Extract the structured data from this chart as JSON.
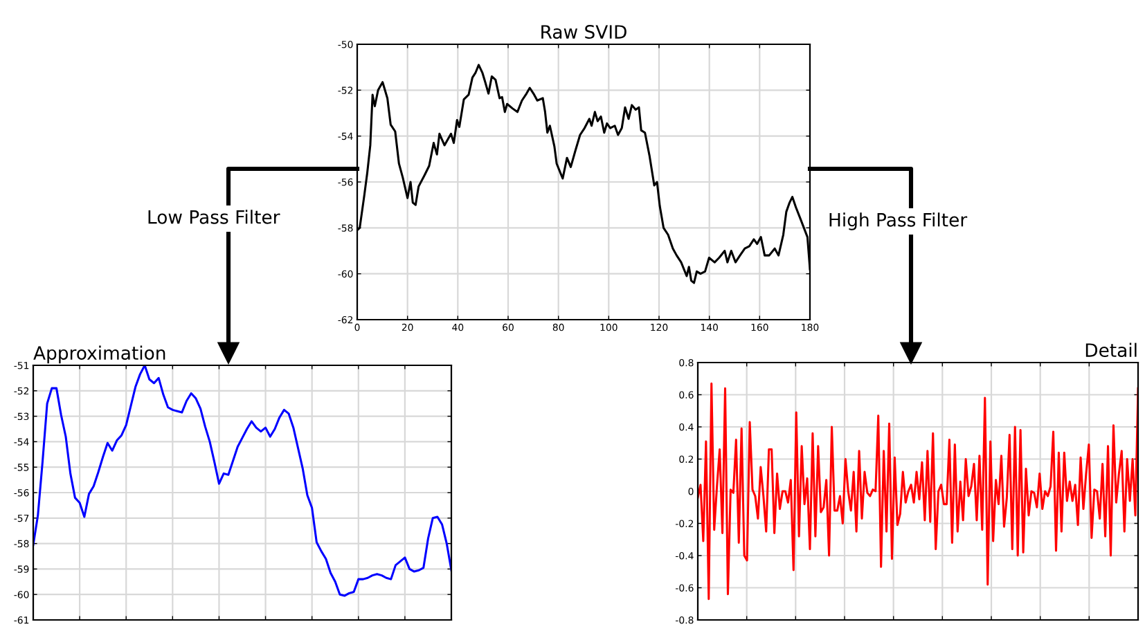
{
  "chart_data": [
    {
      "type": "line",
      "title": "Raw SVID",
      "annotations": [
        "Low Pass Filter",
        "High Pass Filter"
      ],
      "grid": true,
      "xlim": [
        0,
        180
      ],
      "xticks": [
        0,
        20,
        40,
        60,
        80,
        100,
        120,
        140,
        160,
        180
      ],
      "ylim": [
        -62,
        -50
      ],
      "yticks": [
        -62,
        -60,
        -58,
        -56,
        -54,
        -52,
        -50
      ],
      "series": [
        {
          "color": "#000000",
          "x": [
            0,
            1,
            2.8,
            4,
            5.2,
            6.1,
            7,
            8.3,
            10.1,
            12,
            13.3,
            15.1,
            16.6,
            18.1,
            20,
            21.2,
            22.1,
            23.2,
            24.4,
            26.8,
            28.6,
            30.4,
            31.7,
            32.7,
            34.7,
            37.3,
            38.4,
            39.7,
            40.6,
            42.4,
            44.3,
            45.8,
            47,
            48.3,
            49.8,
            50.9,
            52.2,
            53.5,
            55,
            56.6,
            57.6,
            58.7,
            59.6,
            61.8,
            63.7,
            64.6,
            65.5,
            67.3,
            68.6,
            70.1,
            71.6,
            73.8,
            74.7,
            75.6,
            76.6,
            78.4,
            79.3,
            81.7,
            83.4,
            84.9,
            86.7,
            88.6,
            90.4,
            92.3,
            93.2,
            94.5,
            95.6,
            96.9,
            98.2,
            99.3,
            100.6,
            102.4,
            103.7,
            105.2,
            106.5,
            107.9,
            109.2,
            110.7,
            112,
            112.9,
            114.4,
            116.2,
            118.1,
            119.2,
            120.3,
            121.8,
            123.6,
            125.5,
            127,
            128.8,
            131,
            131.9,
            132.8,
            133.9,
            135,
            136.5,
            138.3,
            139.9,
            142.1,
            143.9,
            146.1,
            147.2,
            148.7,
            150.4,
            152.2,
            154.1,
            155.9,
            157.7,
            159,
            160.5,
            162,
            163.8,
            166,
            167.5,
            169.4,
            170.6,
            171.9,
            173,
            174.4,
            176.2,
            179,
            180
          ],
          "values": [
            -58.1,
            -58.0,
            -56.6,
            -55.6,
            -54.4,
            -52.2,
            -52.7,
            -52.0,
            -51.65,
            -52.35,
            -53.5,
            -53.8,
            -55.2,
            -55.8,
            -56.7,
            -56.0,
            -56.9,
            -57.0,
            -56.2,
            -55.7,
            -55.3,
            -54.3,
            -54.8,
            -53.9,
            -54.4,
            -53.9,
            -54.3,
            -53.3,
            -53.6,
            -52.4,
            -52.2,
            -51.45,
            -51.25,
            -50.9,
            -51.25,
            -51.65,
            -52.15,
            -51.4,
            -51.55,
            -52.35,
            -52.3,
            -52.95,
            -52.6,
            -52.8,
            -52.95,
            -52.7,
            -52.45,
            -52.15,
            -51.9,
            -52.15,
            -52.45,
            -52.35,
            -52.95,
            -53.85,
            -53.55,
            -54.45,
            -55.2,
            -55.85,
            -54.95,
            -55.35,
            -54.65,
            -53.95,
            -53.65,
            -53.25,
            -53.55,
            -52.95,
            -53.35,
            -53.15,
            -53.85,
            -53.45,
            -53.65,
            -53.55,
            -53.95,
            -53.65,
            -52.75,
            -53.25,
            -52.65,
            -52.85,
            -52.75,
            -53.75,
            -53.85,
            -54.85,
            -56.15,
            -56.0,
            -57.05,
            -58.0,
            -58.3,
            -58.9,
            -59.2,
            -59.5,
            -60.1,
            -59.7,
            -60.3,
            -60.4,
            -59.9,
            -60.0,
            -59.9,
            -59.3,
            -59.5,
            -59.3,
            -59.0,
            -59.5,
            -59.0,
            -59.5,
            -59.2,
            -58.9,
            -58.8,
            -58.5,
            -58.7,
            -58.4,
            -59.2,
            -59.2,
            -58.9,
            -59.2,
            -58.3,
            -57.3,
            -56.9,
            -56.65,
            -57.1,
            -57.6,
            -58.4,
            -59.8
          ]
        }
      ]
    },
    {
      "type": "line",
      "title": "Approximation",
      "grid": true,
      "tick_labels": "y",
      "ylim": [
        -61,
        -51
      ],
      "yticks": [
        -61,
        -60,
        -59,
        -58,
        -57,
        -56,
        -55,
        -54,
        -53,
        -52,
        -51
      ],
      "categories": [
        null,
        null,
        null,
        null,
        null,
        null,
        null,
        null,
        null,
        null,
        null,
        null,
        null,
        null,
        null,
        null,
        null,
        null,
        null,
        null,
        null,
        null,
        null,
        null,
        null,
        null,
        null,
        null,
        null,
        null,
        null,
        null,
        null,
        null,
        null,
        null,
        null,
        null,
        null,
        null,
        null,
        null,
        null,
        null,
        null,
        null,
        null,
        null,
        null,
        null,
        null,
        null,
        null,
        null,
        null,
        null,
        null,
        null,
        null,
        null,
        null,
        null,
        null,
        null,
        null,
        null,
        null,
        null,
        null,
        null,
        null,
        null,
        null,
        null,
        null,
        null,
        null,
        null,
        null,
        null,
        null,
        null,
        null,
        null,
        null,
        null,
        null,
        null,
        null,
        null,
        null
      ],
      "series": [
        {
          "color": "#0000ff",
          "values": [
            -58.05,
            -56.9,
            -54.8,
            -52.5,
            -51.9,
            -51.9,
            -52.95,
            -53.8,
            -55.25,
            -56.2,
            -56.4,
            -56.95,
            -56.05,
            -55.75,
            -55.2,
            -54.6,
            -54.05,
            -54.35,
            -53.95,
            -53.75,
            -53.35,
            -52.6,
            -51.85,
            -51.35,
            -51.0,
            -51.55,
            -51.7,
            -51.5,
            -52.15,
            -52.65,
            -52.75,
            -52.8,
            -52.85,
            -52.4,
            -52.1,
            -52.3,
            -52.7,
            -53.4,
            -54.0,
            -54.8,
            -55.65,
            -55.25,
            -55.3,
            -54.75,
            -54.2,
            -53.85,
            -53.5,
            -53.2,
            -53.45,
            -53.6,
            -53.45,
            -53.8,
            -53.5,
            -53.05,
            -52.75,
            -52.9,
            -53.45,
            -54.25,
            -55.05,
            -56.1,
            -56.6,
            -57.95,
            -58.3,
            -58.6,
            -59.15,
            -59.5,
            -60.0,
            -60.05,
            -59.95,
            -59.9,
            -59.4,
            -59.4,
            -59.35,
            -59.25,
            -59.2,
            -59.25,
            -59.35,
            -59.4,
            -58.85,
            -58.7,
            -58.55,
            -59.0,
            -59.1,
            -59.05,
            -58.95,
            -57.8,
            -57.0,
            -56.95,
            -57.25,
            -58.0,
            -59.05
          ]
        }
      ]
    },
    {
      "type": "line",
      "title": "Detail",
      "grid": true,
      "tick_labels": "y",
      "ylim": [
        -0.8,
        0.8
      ],
      "yticks": [
        -0.8,
        -0.6,
        -0.4,
        -0.2,
        0,
        0.2,
        0.4,
        0.6,
        0.8
      ],
      "categories": [
        null,
        null,
        null,
        null,
        null,
        null,
        null,
        null,
        null,
        null,
        null,
        null,
        null,
        null,
        null,
        null,
        null,
        null,
        null,
        null,
        null,
        null,
        null,
        null,
        null,
        null,
        null,
        null,
        null,
        null,
        null,
        null,
        null,
        null,
        null,
        null,
        null,
        null,
        null,
        null,
        null,
        null,
        null,
        null,
        null,
        null,
        null,
        null,
        null,
        null,
        null,
        null,
        null,
        null,
        null,
        null,
        null,
        null,
        null,
        null,
        null,
        null,
        null,
        null,
        null,
        null,
        null,
        null,
        null,
        null,
        null,
        null,
        null,
        null,
        null,
        null,
        null,
        null,
        null,
        null,
        null,
        null,
        null,
        null,
        null,
        null,
        null,
        null,
        null,
        null,
        null,
        null,
        null,
        null,
        null,
        null,
        null,
        null,
        null,
        null,
        null,
        null,
        null,
        null,
        null,
        null,
        null,
        null,
        null,
        null,
        null,
        null,
        null,
        null,
        null,
        null,
        null,
        null,
        null,
        null,
        null,
        null,
        null,
        null,
        null,
        null,
        null,
        null,
        null,
        null,
        null,
        null,
        null,
        null,
        null,
        null,
        null,
        null,
        null,
        null,
        null,
        null,
        null,
        null,
        null,
        null,
        null,
        null,
        null,
        null,
        null,
        null,
        null,
        null,
        null,
        null,
        null,
        null,
        null,
        null,
        null,
        null
      ],
      "series": [
        {
          "color": "#ff0000",
          "values": [
            -0.04,
            0.04,
            -0.31,
            0.31,
            -0.67,
            0.67,
            -0.24,
            0.03,
            0.26,
            -0.26,
            0.64,
            -0.64,
            0.01,
            -0.01,
            0.32,
            -0.32,
            0.39,
            -0.4,
            -0.43,
            0.43,
            0.01,
            -0.03,
            -0.17,
            0.15,
            -0.03,
            -0.25,
            0.26,
            0.26,
            -0.26,
            0.11,
            -0.11,
            0,
            0,
            -0.07,
            0.07,
            -0.49,
            0.49,
            -0.28,
            0.28,
            -0.08,
            0.08,
            -0.36,
            0.36,
            -0.28,
            0.28,
            -0.13,
            -0.1,
            0.07,
            -0.4,
            0.4,
            -0.12,
            -0.12,
            -0.03,
            -0.2,
            0.2,
            0,
            -0.12,
            0.12,
            -0.25,
            0.25,
            -0.17,
            0.12,
            -0.01,
            -0.03,
            0.01,
            0,
            0.47,
            -0.47,
            0.25,
            -0.25,
            0.42,
            -0.42,
            0.21,
            -0.21,
            -0.14,
            0.12,
            -0.07,
            0,
            0.04,
            -0.07,
            0.12,
            -0.05,
            0.18,
            -0.18,
            0.25,
            -0.19,
            0.36,
            -0.36,
            0,
            0.04,
            -0.08,
            -0.08,
            0.32,
            -0.32,
            0.29,
            -0.25,
            0.06,
            -0.18,
            0.2,
            -0.03,
            0.03,
            0.17,
            -0.18,
            0.22,
            -0.24,
            0.58,
            -0.58,
            0.31,
            -0.31,
            0.07,
            -0.08,
            0.22,
            -0.22,
            -0.04,
            0.35,
            -0.36,
            0.4,
            -0.4,
            0.38,
            -0.38,
            0.14,
            -0.15,
            0,
            -0.01,
            -0.1,
            0.11,
            -0.11,
            0,
            -0.03,
            0.03,
            0.37,
            -0.37,
            0.24,
            -0.25,
            0.24,
            -0.06,
            0.06,
            -0.06,
            0.04,
            -0.21,
            0.21,
            -0.11,
            0.11,
            0.29,
            -0.29,
            0.01,
            0,
            -0.17,
            0.17,
            -0.28,
            0.28,
            -0.4,
            0.41,
            -0.07,
            0.11,
            0.25,
            -0.25,
            0.2,
            -0.06,
            0.2,
            -0.15,
            0.64
          ]
        }
      ]
    }
  ]
}
